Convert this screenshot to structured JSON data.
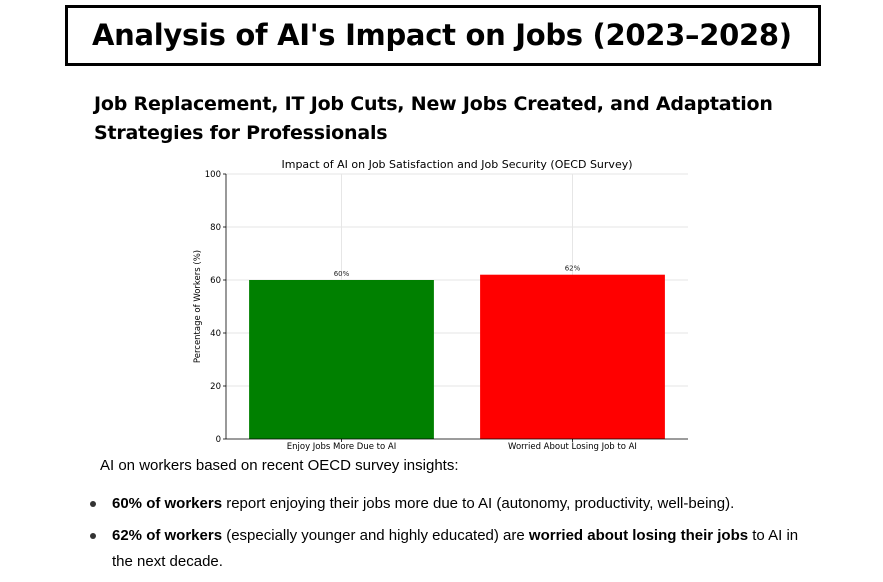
{
  "header": {
    "title": "Analysis of AI's Impact on Jobs (2023–2028)",
    "subtitle": "Job Replacement, IT Job Cuts, New Jobs Created, and Adaptation Strategies for Professionals"
  },
  "chart_data": {
    "type": "bar",
    "title": "Impact of AI on Job Satisfaction and Job Security (OECD Survey)",
    "xlabel": "",
    "ylabel": "Percentage of Workers (%)",
    "ylim": [
      0,
      100
    ],
    "yticks": [
      0,
      20,
      40,
      60,
      80,
      100
    ],
    "grid": true,
    "categories": [
      "Enjoy Jobs More Due to AI",
      "Worried About Losing Job to AI"
    ],
    "values": [
      60,
      62
    ],
    "data_labels": [
      "60%",
      "62%"
    ],
    "colors": [
      "#008000",
      "#ff0000"
    ]
  },
  "caption": "AI on workers based on recent OECD survey insights:",
  "bullets": [
    [
      {
        "text": "60% of workers",
        "bold": true
      },
      {
        "text": " report enjoying their jobs more due to AI (autonomy, productivity, well-being).",
        "bold": false
      }
    ],
    [
      {
        "text": "62% of workers",
        "bold": true
      },
      {
        "text": " (especially younger and highly educated) are ",
        "bold": false
      },
      {
        "text": "worried about losing their jobs",
        "bold": true
      },
      {
        "text": " to AI in the next decade.",
        "bold": false
      }
    ]
  ]
}
